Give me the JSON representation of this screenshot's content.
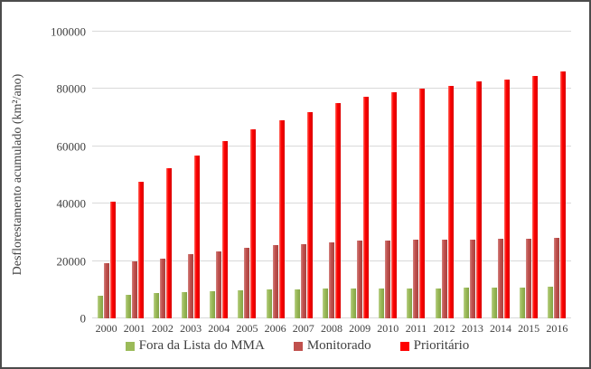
{
  "chart_data": {
    "type": "bar",
    "title": "",
    "xlabel": "",
    "ylabel": "Desflorestamento acumulado (km²/ano)",
    "ylim": [
      0,
      100000
    ],
    "yticks": [
      0,
      20000,
      40000,
      60000,
      80000,
      100000
    ],
    "ytick_labels": [
      "0",
      "20000",
      "40000",
      "60000",
      "80000",
      "100000"
    ],
    "grid": "horizontal",
    "legend_position": "bottom",
    "categories": [
      "2000",
      "2001",
      "2002",
      "2003",
      "2004",
      "2005",
      "2006",
      "2007",
      "2008",
      "2009",
      "2010",
      "2011",
      "2012",
      "2013",
      "2014",
      "2015",
      "2016"
    ],
    "series": [
      {
        "name": "Fora da Lista do MMA",
        "color": "#9BBB59",
        "color_light": "#BBD08A",
        "color_dark": "#84A347",
        "values": [
          7900,
          8200,
          8700,
          9100,
          9500,
          9800,
          10000,
          10200,
          10300,
          10400,
          10450,
          10500,
          10550,
          10600,
          10700,
          10800,
          10900
        ]
      },
      {
        "name": "Monitorado",
        "color": "#C0504D",
        "color_light": "#D2827F",
        "color_dark": "#A8433F",
        "values": [
          19400,
          19900,
          20800,
          22400,
          23500,
          24700,
          25400,
          26000,
          26500,
          27000,
          27200,
          27350,
          27450,
          27600,
          27750,
          27900,
          28100
        ]
      },
      {
        "name": "Prioritário",
        "color": "#FE0000",
        "color_light": "#FF6B5E",
        "color_dark": "#D90000",
        "values": [
          40600,
          47700,
          52400,
          56900,
          61900,
          66000,
          69100,
          72000,
          75200,
          77400,
          78900,
          80200,
          81200,
          82500,
          83300,
          84600,
          86200
        ]
      }
    ]
  },
  "colors": {
    "gridline": "#D9D9D9",
    "axis_text": "#404040",
    "border": "#4C4C4C",
    "background": "#FFFFFF"
  }
}
